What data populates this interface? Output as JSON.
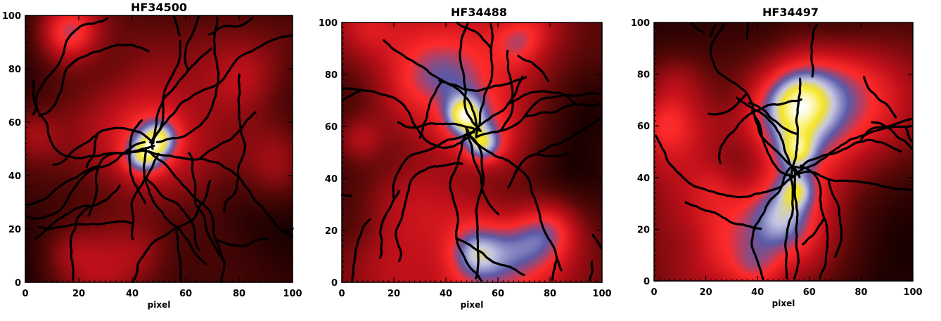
{
  "colors": {
    "background": "#ffffff",
    "filament": "#000000",
    "colormap": [
      "#1a0000",
      "#5a0808",
      "#c0101a",
      "#ff2a2a",
      "#5a5aa8",
      "#c8c8e6",
      "#f5e61e",
      "#ffffff"
    ]
  },
  "chart_data": [
    {
      "type": "heatmap",
      "title": "HF34500",
      "xlabel": "pixel",
      "ylabel": "",
      "xlim": [
        0,
        100
      ],
      "ylim": [
        0,
        100
      ],
      "xticks": [
        "0",
        "20",
        "40",
        "60",
        "80",
        "100"
      ],
      "yticks": [
        "0",
        "20",
        "40",
        "60",
        "80",
        "100"
      ],
      "peaks": [
        {
          "x": 50,
          "y": 54
        },
        {
          "x": 44,
          "y": 47
        }
      ],
      "core_direction": "diagonal"
    },
    {
      "type": "heatmap",
      "title": "HF34488",
      "xlabel": "pixel",
      "ylabel": "",
      "xlim": [
        0,
        100
      ],
      "ylim": [
        0,
        100
      ],
      "xticks": [
        "0",
        "20",
        "40",
        "60",
        "80",
        "100"
      ],
      "yticks": [
        "0",
        "20",
        "40",
        "60",
        "80",
        "100"
      ],
      "peaks": [
        {
          "x": 47,
          "y": 64
        },
        {
          "x": 54,
          "y": 53
        }
      ],
      "core_direction": "arc"
    },
    {
      "type": "heatmap",
      "title": "HF34497",
      "xlabel": "pixel",
      "ylabel": "",
      "xlim": [
        0,
        100
      ],
      "ylim": [
        0,
        100
      ],
      "xticks": [
        "0",
        "20",
        "40",
        "60",
        "80",
        "100"
      ],
      "yticks": [
        "0",
        "20",
        "40",
        "60",
        "80",
        "100"
      ],
      "peaks": [
        {
          "x": 55,
          "y": 50
        },
        {
          "x": 55,
          "y": 35
        }
      ],
      "core_direction": "vertical"
    }
  ]
}
